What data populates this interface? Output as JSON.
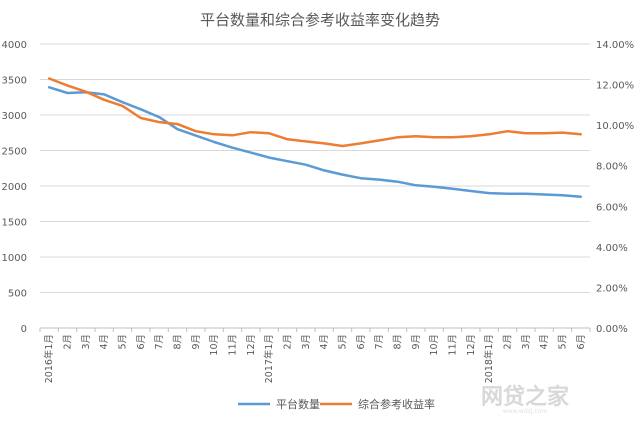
{
  "chart_data": {
    "type": "line",
    "title": "平台数量和综合参考收益率变化趋势",
    "categories": [
      "2016年1月",
      "2月",
      "3月",
      "4月",
      "5月",
      "6月",
      "7月",
      "8月",
      "9月",
      "10月",
      "11月",
      "12月",
      "2017年1月",
      "2月",
      "3月",
      "4月",
      "5月",
      "6月",
      "7月",
      "8月",
      "9月",
      "10月",
      "11月",
      "12月",
      "2018年1月",
      "2月",
      "3月",
      "4月",
      "5月",
      "6月"
    ],
    "y_left": {
      "ylim": [
        0,
        4000
      ],
      "ticks": [
        "0",
        "500",
        "1000",
        "1500",
        "2000",
        "2500",
        "3000",
        "3500",
        "4000"
      ]
    },
    "y_right": {
      "ylim": [
        0,
        14
      ],
      "unit": "%",
      "ticks": [
        "0.00%",
        "2.00%",
        "4.00%",
        "6.00%",
        "8.00%",
        "10.00%",
        "12.00%",
        "14.00%"
      ]
    },
    "grid": true,
    "legend_position": "bottom",
    "series": [
      {
        "name": "平台数量",
        "axis": "left",
        "color": "#5b9bd5",
        "values": [
          3390,
          3310,
          3320,
          3290,
          3180,
          3080,
          2970,
          2800,
          2710,
          2620,
          2540,
          2470,
          2400,
          2350,
          2300,
          2220,
          2160,
          2110,
          2090,
          2060,
          2010,
          1990,
          1960,
          1930,
          1900,
          1890,
          1890,
          1880,
          1870,
          1850
        ]
      },
      {
        "name": "综合参考收益率",
        "axis": "right",
        "color": "#ed7d31",
        "values": [
          12.3,
          11.95,
          11.65,
          11.25,
          10.95,
          10.35,
          10.15,
          10.05,
          9.7,
          9.55,
          9.5,
          9.65,
          9.6,
          9.3,
          9.2,
          9.1,
          8.97,
          9.1,
          9.25,
          9.4,
          9.45,
          9.4,
          9.4,
          9.45,
          9.55,
          9.7,
          9.6,
          9.6,
          9.63,
          9.55
        ]
      }
    ]
  },
  "watermark": {
    "text": "网贷之家",
    "sub": "www.wdzj.com"
  }
}
